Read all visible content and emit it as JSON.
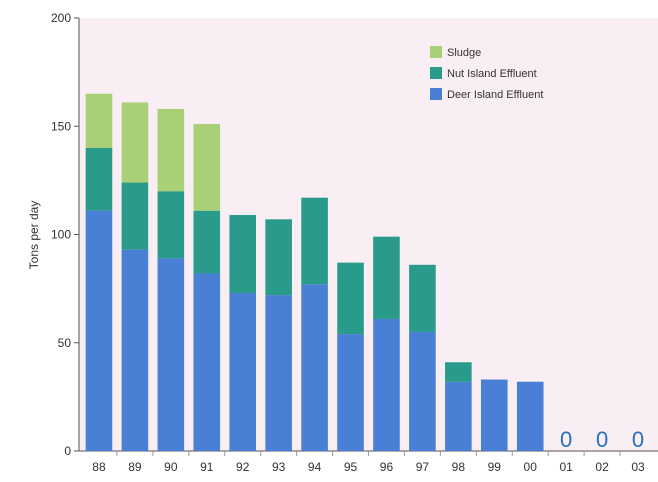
{
  "chart_data": {
    "type": "bar",
    "stacked": true,
    "categories": [
      "88",
      "89",
      "90",
      "91",
      "92",
      "93",
      "94",
      "95",
      "96",
      "97",
      "98",
      "99",
      "00",
      "01",
      "02",
      "03"
    ],
    "series": [
      {
        "name": "Deer Island Effluent",
        "color": "#4a7fd6",
        "values": [
          111,
          93,
          89,
          82,
          73,
          72,
          77,
          54,
          61,
          55,
          32,
          33,
          32,
          0,
          0,
          0
        ]
      },
      {
        "name": "Nut Island Effluent",
        "color": "#2a9a8a",
        "values": [
          29,
          31,
          31,
          29,
          36,
          35,
          40,
          33,
          38,
          31,
          9,
          0,
          0,
          0,
          0,
          0
        ]
      },
      {
        "name": "Sludge",
        "color": "#a9cf77",
        "values": [
          25,
          37,
          38,
          40,
          0,
          0,
          0,
          0,
          0,
          0,
          0,
          0,
          0,
          0,
          0,
          0
        ]
      }
    ],
    "data_labels": [
      {
        "category": "01",
        "text": "0"
      },
      {
        "category": "02",
        "text": "0"
      },
      {
        "category": "03",
        "text": "0"
      }
    ],
    "title": "",
    "xlabel": "",
    "ylabel": "Tons per day",
    "ylim": [
      0,
      200
    ],
    "yticks": [
      0,
      50,
      100,
      150,
      200
    ],
    "legend": {
      "placement": "top-right",
      "order": [
        "Sludge",
        "Nut Island Effluent",
        "Deer Island Effluent"
      ]
    },
    "background_color": "#f8eef3",
    "grid": false
  }
}
